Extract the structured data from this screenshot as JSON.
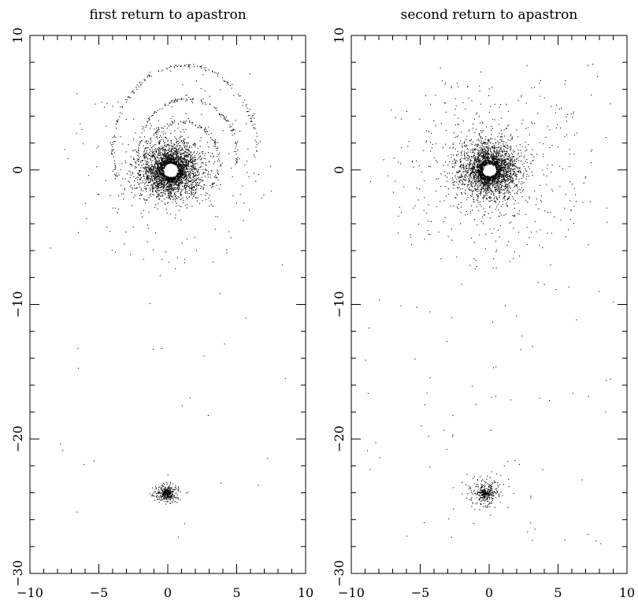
{
  "chart_data": [
    {
      "type": "scatter",
      "title": "first return to apastron",
      "xlabel": "",
      "ylabel": "",
      "xlim": [
        -10,
        10
      ],
      "ylim": [
        -30,
        10
      ],
      "xticks": [
        -10,
        -5,
        0,
        5,
        10
      ],
      "xtick_labels": [
        "−10",
        "−5",
        "0",
        "5",
        "10"
      ],
      "yticks": [
        -30,
        -20,
        -10,
        0,
        10
      ],
      "ytick_labels": [
        "−30",
        "−20",
        "−10",
        "0",
        "10"
      ],
      "grid": false,
      "legend": "none",
      "point_color": "#000000",
      "clusters": [
        {
          "center": [
            0.2,
            0.0
          ],
          "count": 2600,
          "spread": [
            1.5,
            1.4
          ],
          "core_hole": 0.5
        },
        {
          "center": [
            -0.1,
            -24.0
          ],
          "count": 450,
          "spread": [
            0.7,
            0.5
          ],
          "core_hole": 0
        }
      ],
      "arcs": [
        {
          "cx": 1.2,
          "cy": 1.6,
          "rx": 5.2,
          "ry": 6.2,
          "from_deg": -20,
          "to_deg": 200,
          "count": 170
        },
        {
          "cx": 1.4,
          "cy": 1.2,
          "rx": 3.6,
          "ry": 4.1,
          "from_deg": -10,
          "to_deg": 190,
          "count": 140
        },
        {
          "cx": 1.0,
          "cy": 0.6,
          "rx": 2.7,
          "ry": 3.0,
          "from_deg": -40,
          "to_deg": 220,
          "count": 140
        }
      ],
      "halo_count": 160,
      "background_count": 40
    },
    {
      "type": "scatter",
      "title": "second return to apastron",
      "xlabel": "",
      "ylabel": "",
      "xlim": [
        -10,
        10
      ],
      "ylim": [
        -30,
        10
      ],
      "xticks": [
        -10,
        -5,
        0,
        5,
        10
      ],
      "xtick_labels": [
        "−10",
        "−5",
        "0",
        "5",
        "10"
      ],
      "yticks": [
        -30,
        -20,
        -10,
        0,
        10
      ],
      "ytick_labels": [
        "−30",
        "−20",
        "−10",
        "0",
        "10"
      ],
      "grid": false,
      "legend": "none",
      "point_color": "#000000",
      "clusters": [
        {
          "center": [
            0.0,
            0.0
          ],
          "count": 2400,
          "spread": [
            1.5,
            1.5
          ],
          "core_hole": 0.45
        },
        {
          "center": [
            -0.3,
            -24.0
          ],
          "count": 380,
          "spread": [
            0.9,
            0.8
          ],
          "core_hole": 0
        }
      ],
      "arcs": [],
      "halo_count": 320,
      "background_count": 140
    }
  ]
}
